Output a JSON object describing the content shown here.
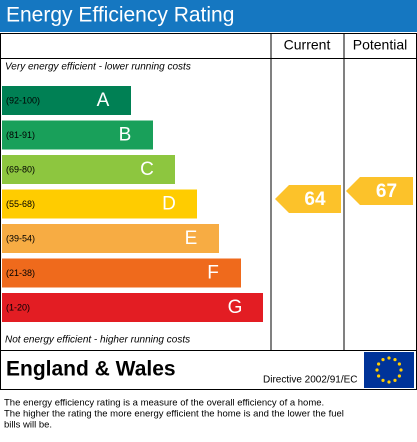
{
  "title": "Energy Efficiency Rating",
  "columns": [
    "Current",
    "Potential"
  ],
  "top_note": "Very energy efficient - lower running costs",
  "bands": [
    {
      "range": "(92-100)",
      "letter": "A",
      "color": "#008054"
    },
    {
      "range": "(81-91)",
      "letter": "B",
      "color": "#19a05a"
    },
    {
      "range": "(69-80)",
      "letter": "C",
      "color": "#8dc63f"
    },
    {
      "range": "(55-68)",
      "letter": "D",
      "color": "#ffcc00"
    },
    {
      "range": "(39-54)",
      "letter": "E",
      "color": "#f7ac43"
    },
    {
      "range": "(21-38)",
      "letter": "F",
      "color": "#ef6a1c"
    },
    {
      "range": "(1-20)",
      "letter": "G",
      "color": "#e31d23"
    }
  ],
  "bottom_note": "Not energy efficient - higher running costs",
  "current": 64,
  "potential": 67,
  "arrow_color": "#fcc22a",
  "region": "England & Wales",
  "directive": "Directive 2002/91/EC",
  "footer": [
    "The energy efficiency rating is a measure of the overall efficiency of a home.",
    "The higher the rating the more energy efficient the home is and the lower the fuel",
    "bills will be."
  ]
}
